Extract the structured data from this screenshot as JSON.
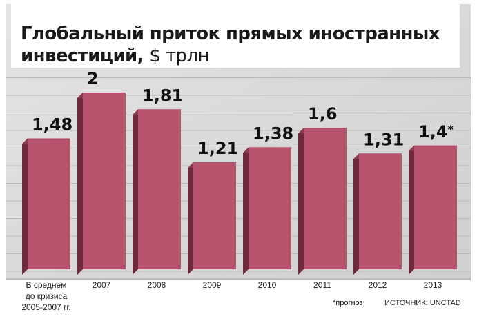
{
  "title": {
    "main": "Глобальный приток прямых иностранных",
    "main2": "инвестиций,",
    "unit": "$ трлн"
  },
  "chart_data": {
    "type": "bar",
    "categories": [
      [
        "В среднем",
        "до кризиса",
        "2005-2007 гг."
      ],
      [
        "2007"
      ],
      [
        "2008"
      ],
      [
        "2009"
      ],
      [
        "2010"
      ],
      [
        "2011"
      ],
      [
        "2012"
      ],
      [
        "2013"
      ]
    ],
    "values": [
      1.48,
      2,
      1.81,
      1.21,
      1.38,
      1.6,
      1.31,
      1.4
    ],
    "value_labels": [
      "1,48",
      "2",
      "1,81",
      "1,21",
      "1,38",
      "1,6",
      "1,31",
      "1,4"
    ],
    "value_label_marks": [
      "",
      "",
      "",
      "",
      "",
      "",
      "",
      "*"
    ],
    "bar_color": "#b5546c",
    "bar_side_color": "#6e2a3c",
    "bar_top_color": "#8c3a50",
    "grid": true,
    "ylim": [
      0,
      2.1
    ]
  },
  "footnote": "*прогноз",
  "source": "ИСТОЧНИК: UNCTAD"
}
